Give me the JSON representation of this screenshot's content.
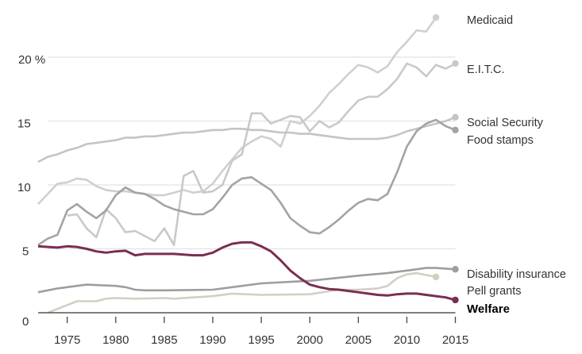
{
  "chart_data": {
    "type": "line",
    "title": "",
    "xlabel": "",
    "ylabel": "",
    "xlim": [
      1972,
      2015
    ],
    "ylim": [
      0,
      20
    ],
    "x_ticks": [
      "1975",
      "1980",
      "1985",
      "1990",
      "1995",
      "2000",
      "2005",
      "2010",
      "2015"
    ],
    "y_ticks": [
      {
        "value": 0,
        "label": "0"
      },
      {
        "value": 5,
        "label": "5"
      },
      {
        "value": 10,
        "label": "10"
      },
      {
        "value": 15,
        "label": "15"
      },
      {
        "value": 20,
        "label": "20 %"
      }
    ],
    "grid": true,
    "legend": "direct labels at right end of lines",
    "series": [
      {
        "name": "Medicaid",
        "color": "#d0d0cb",
        "endpoint_marker": true,
        "emphasis": false,
        "x": [
          1972,
          1973,
          1974,
          1975,
          1976,
          1977,
          1978,
          1979,
          1980,
          1981,
          1982,
          1983,
          1984,
          1985,
          1986,
          1987,
          1988,
          1989,
          1990,
          1991,
          1992,
          1993,
          1994,
          1995,
          1996,
          1997,
          1998,
          1999,
          2000,
          2001,
          2002,
          2003,
          2004,
          2005,
          2006,
          2007,
          2008,
          2009,
          2010,
          2011,
          2012,
          2013
        ],
        "values": [
          8.5,
          9.3,
          10.1,
          10.2,
          10.5,
          10.4,
          9.9,
          9.6,
          9.5,
          9.5,
          9.4,
          9.3,
          9.2,
          9.2,
          9.4,
          9.6,
          9.4,
          9.5,
          10.1,
          11.1,
          12.0,
          12.9,
          13.4,
          13.8,
          13.6,
          13.0,
          15.0,
          14.8,
          15.4,
          16.2,
          17.2,
          17.9,
          18.7,
          19.4,
          19.2,
          18.8,
          19.3,
          20.4,
          21.2,
          22.1,
          22.0,
          23.1
        ]
      },
      {
        "name": "E.I.T.C.",
        "color": "#c9c9c9",
        "endpoint_marker": true,
        "emphasis": false,
        "x": [
          1975,
          1976,
          1977,
          1978,
          1979,
          1980,
          1981,
          1982,
          1983,
          1984,
          1985,
          1986,
          1987,
          1988,
          1989,
          1990,
          1991,
          1992,
          1993,
          1994,
          1995,
          1996,
          1997,
          1998,
          1999,
          2000,
          2001,
          2002,
          2003,
          2004,
          2005,
          2006,
          2007,
          2008,
          2009,
          2010,
          2011,
          2012,
          2013,
          2014,
          2015
        ],
        "values": [
          7.6,
          7.7,
          6.6,
          5.9,
          8.1,
          7.4,
          6.3,
          6.4,
          6.0,
          5.6,
          6.6,
          5.3,
          10.7,
          11.1,
          9.4,
          9.5,
          10.0,
          11.9,
          12.4,
          15.6,
          15.6,
          14.8,
          15.1,
          15.4,
          15.3,
          14.2,
          15.0,
          14.5,
          14.9,
          15.8,
          16.6,
          16.9,
          16.9,
          17.5,
          18.3,
          19.5,
          19.2,
          18.5,
          19.4,
          19.1,
          19.5
        ]
      },
      {
        "name": "Social Security",
        "color": "#c4c4c4",
        "endpoint_marker": true,
        "emphasis": false,
        "x": [
          1972,
          1973,
          1974,
          1975,
          1976,
          1977,
          1978,
          1979,
          1980,
          1981,
          1982,
          1983,
          1984,
          1985,
          1986,
          1987,
          1988,
          1989,
          1990,
          1991,
          1992,
          1993,
          1994,
          1995,
          1996,
          1997,
          1998,
          1999,
          2000,
          2001,
          2002,
          2003,
          2004,
          2005,
          2006,
          2007,
          2008,
          2009,
          2010,
          2011,
          2012,
          2013,
          2014,
          2015
        ],
        "values": [
          11.8,
          12.2,
          12.4,
          12.7,
          12.9,
          13.2,
          13.3,
          13.4,
          13.5,
          13.7,
          13.7,
          13.8,
          13.8,
          13.9,
          14.0,
          14.1,
          14.1,
          14.2,
          14.3,
          14.3,
          14.4,
          14.4,
          14.3,
          14.3,
          14.2,
          14.1,
          14.1,
          14.0,
          14.0,
          13.9,
          13.8,
          13.7,
          13.6,
          13.6,
          13.6,
          13.6,
          13.7,
          13.9,
          14.2,
          14.4,
          14.6,
          14.8,
          15.0,
          15.3
        ]
      },
      {
        "name": "Food stamps",
        "color": "#a3a3a3",
        "endpoint_marker": true,
        "emphasis": false,
        "x": [
          1972,
          1973,
          1974,
          1975,
          1976,
          1977,
          1978,
          1979,
          1980,
          1981,
          1982,
          1983,
          1984,
          1985,
          1986,
          1987,
          1988,
          1989,
          1990,
          1991,
          1992,
          1993,
          1994,
          1995,
          1996,
          1997,
          1998,
          1999,
          2000,
          2001,
          2002,
          2003,
          2004,
          2005,
          2006,
          2007,
          2008,
          2009,
          2010,
          2011,
          2012,
          2013,
          2014,
          2015
        ],
        "values": [
          5.3,
          5.8,
          6.1,
          8.0,
          8.5,
          7.9,
          7.4,
          8.0,
          9.2,
          9.8,
          9.4,
          9.3,
          8.9,
          8.4,
          8.1,
          7.9,
          7.7,
          7.7,
          8.1,
          9.0,
          10.0,
          10.5,
          10.6,
          10.1,
          9.6,
          8.6,
          7.4,
          6.8,
          6.3,
          6.2,
          6.7,
          7.3,
          8.0,
          8.6,
          8.9,
          8.8,
          9.3,
          11.0,
          13.0,
          14.2,
          14.8,
          15.1,
          14.6,
          14.3
        ]
      },
      {
        "name": "Disability insurance",
        "color": "#9e9e9e",
        "endpoint_marker": true,
        "emphasis": false,
        "x": [
          1972,
          1974,
          1975,
          1977,
          1980,
          1981,
          1982,
          1983,
          1985,
          1990,
          1992,
          1995,
          2000,
          2005,
          2008,
          2010,
          2012,
          2013,
          2015
        ],
        "values": [
          1.6,
          1.9,
          2.0,
          2.2,
          2.1,
          2.0,
          1.8,
          1.75,
          1.75,
          1.8,
          2.0,
          2.3,
          2.5,
          2.9,
          3.1,
          3.3,
          3.5,
          3.5,
          3.4
        ]
      },
      {
        "name": "Pell grants",
        "color": "#d3cfc1",
        "endpoint_marker": true,
        "emphasis": false,
        "x": [
          1973,
          1974,
          1975,
          1976,
          1978,
          1979,
          1980,
          1982,
          1985,
          1986,
          1988,
          1990,
          1992,
          1995,
          2000,
          2003,
          2005,
          2007,
          2008,
          2009,
          2010,
          2011,
          2013
        ],
        "values": [
          0.0,
          0.3,
          0.6,
          0.9,
          0.9,
          1.1,
          1.15,
          1.1,
          1.15,
          1.1,
          1.2,
          1.3,
          1.5,
          1.4,
          1.45,
          1.8,
          1.8,
          1.9,
          2.1,
          2.7,
          3.0,
          3.1,
          2.8
        ]
      },
      {
        "name": "Welfare",
        "color": "#7a2e51",
        "endpoint_marker": true,
        "emphasis": true,
        "x": [
          1972,
          1973,
          1974,
          1975,
          1976,
          1977,
          1978,
          1979,
          1980,
          1981,
          1982,
          1983,
          1984,
          1985,
          1986,
          1987,
          1988,
          1989,
          1990,
          1991,
          1992,
          1993,
          1994,
          1995,
          1996,
          1997,
          1998,
          1999,
          2000,
          2001,
          2002,
          2003,
          2004,
          2005,
          2006,
          2007,
          2008,
          2009,
          2010,
          2011,
          2012,
          2013,
          2014,
          2015
        ],
        "values": [
          5.2,
          5.15,
          5.1,
          5.2,
          5.15,
          5.0,
          4.8,
          4.7,
          4.8,
          4.85,
          4.5,
          4.6,
          4.6,
          4.6,
          4.6,
          4.55,
          4.5,
          4.5,
          4.7,
          5.1,
          5.4,
          5.5,
          5.5,
          5.2,
          4.8,
          4.1,
          3.3,
          2.7,
          2.2,
          2.0,
          1.85,
          1.8,
          1.7,
          1.6,
          1.5,
          1.4,
          1.35,
          1.45,
          1.5,
          1.5,
          1.4,
          1.3,
          1.2,
          1.0
        ]
      }
    ]
  }
}
